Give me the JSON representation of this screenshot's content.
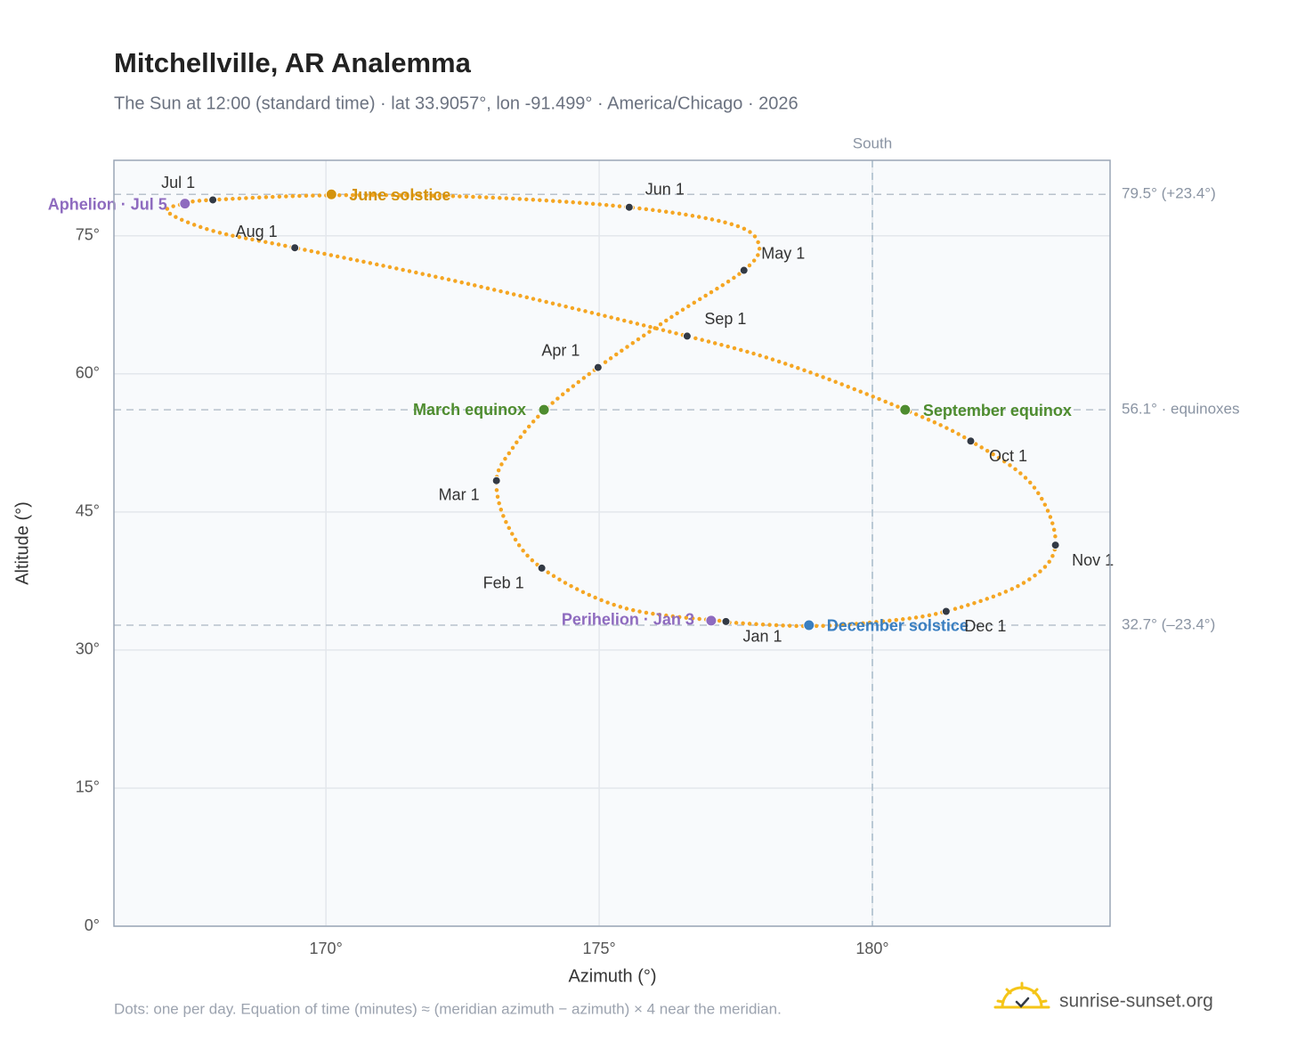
{
  "chart_data": {
    "type": "analemma",
    "title": "Mitchellville, AR Analemma",
    "subtitle": "The Sun at 12:00 (standard time) · lat 33.9057°, lon -91.499° · America/Chicago · 2026",
    "x_label": "Azimuth (°)",
    "y_label": "Altitude (°)",
    "xlim": [
      166.12,
      184.35
    ],
    "ylim": [
      0,
      83.2
    ],
    "xticks": [
      {
        "value": 170,
        "label": "170°"
      },
      {
        "value": 175,
        "label": "175°"
      },
      {
        "value": 180,
        "label": "180°"
      }
    ],
    "yticks": [
      {
        "value": 0,
        "label": "0°"
      },
      {
        "value": 15,
        "label": "15°"
      },
      {
        "value": 30,
        "label": "30°"
      },
      {
        "value": 45,
        "label": "45°"
      },
      {
        "value": 60,
        "label": "60°"
      },
      {
        "value": 75,
        "label": "75°"
      }
    ],
    "grid": true,
    "curve": {
      "color": "#f5a623",
      "x": [
        177.32,
        175.44,
        173.95,
        173.32,
        173.12,
        173.4,
        173.99,
        174.98,
        176.33,
        177.65,
        177.92,
        177.4,
        175.55,
        172.83,
        170.1,
        167.93,
        167.42,
        167.1,
        167.95,
        169.43,
        172.66,
        176.61,
        178.46,
        180.6,
        181.8,
        182.93,
        183.35,
        182.77,
        181.35,
        180.16,
        178.84,
        177.35
      ],
      "y": [
        33.1,
        34.6,
        38.9,
        43.6,
        48.4,
        51.8,
        56.0,
        60.7,
        66.2,
        71.25,
        74.1,
        76.3,
        78.1,
        79.2,
        79.4,
        78.9,
        78.5,
        77.6,
        75.5,
        73.7,
        69.7,
        64.1,
        61.0,
        56.1,
        52.7,
        47.9,
        41.4,
        37.3,
        34.2,
        33.1,
        32.6,
        33.0
      ]
    },
    "points": [
      {
        "label": "Jul 1",
        "x": 167.93,
        "y": 78.9,
        "color": "#333a45"
      },
      {
        "label": "Aphelion · Jul 5",
        "x": 167.42,
        "y": 78.5,
        "color": "#8e6bbf"
      },
      {
        "label": "June solstice",
        "x": 170.1,
        "y": 79.5,
        "color": "#d4930c"
      },
      {
        "label": "Jun 1",
        "x": 175.55,
        "y": 78.1,
        "color": "#333a45"
      },
      {
        "label": "May 1",
        "x": 177.65,
        "y": 71.25,
        "color": "#333a45"
      },
      {
        "label": "Apr 1",
        "x": 174.98,
        "y": 60.7,
        "color": "#333a45"
      },
      {
        "label": "March equinox",
        "x": 173.99,
        "y": 56.1,
        "color": "#4e8c2f"
      },
      {
        "label": "Mar 1",
        "x": 173.12,
        "y": 48.4,
        "color": "#333a45"
      },
      {
        "label": "Feb 1",
        "x": 173.95,
        "y": 38.9,
        "color": "#333a45"
      },
      {
        "label": "Perihelion · Jan 3",
        "x": 177.05,
        "y": 33.2,
        "color": "#8e6bbf"
      },
      {
        "label": "Jan 1",
        "x": 177.32,
        "y": 33.1,
        "color": "#333a45"
      },
      {
        "label": "December solstice",
        "x": 178.84,
        "y": 32.7,
        "color": "#3a7fc1"
      },
      {
        "label": "Dec 1",
        "x": 181.35,
        "y": 34.2,
        "color": "#333a45"
      },
      {
        "label": "Nov 1",
        "x": 183.35,
        "y": 41.4,
        "color": "#333a45"
      },
      {
        "label": "Oct 1",
        "x": 181.8,
        "y": 52.7,
        "color": "#333a45"
      },
      {
        "label": "September equinox",
        "x": 180.6,
        "y": 56.1,
        "color": "#4e8c2f"
      },
      {
        "label": "Sep 1",
        "x": 176.61,
        "y": 64.1,
        "color": "#333a45"
      },
      {
        "label": "Aug 1",
        "x": 169.43,
        "y": 73.7,
        "color": "#333a45"
      }
    ],
    "reference_lines": [
      {
        "value": 79.5,
        "label": "79.5° (+23.4°)"
      },
      {
        "value": 56.1,
        "label": "56.1° · equinoxes"
      },
      {
        "value": 32.7,
        "label": "32.7° (–23.4°)"
      }
    ],
    "vertical_line": {
      "value": 180,
      "label": "South"
    },
    "footnote": "Dots: one per day. Equation of time (minutes) ≈ (meridian azimuth − azimuth) × 4 near the meridian.",
    "brand": "sunrise-sunset.org"
  }
}
